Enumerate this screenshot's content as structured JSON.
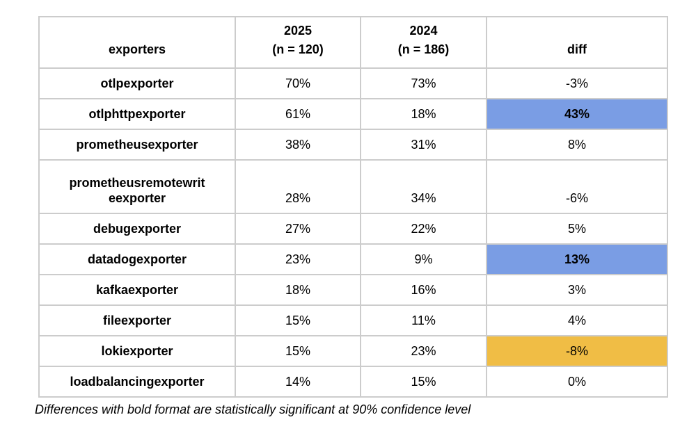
{
  "table": {
    "columns": [
      {
        "label": "exporters"
      },
      {
        "line1": "2025",
        "line2": "(n = 120)"
      },
      {
        "line1": "2024",
        "line2": "(n = 186)"
      },
      {
        "label": "diff"
      }
    ],
    "rows": [
      {
        "name": "otlpexporter",
        "y2025": "70%",
        "y2024": "73%",
        "diff": "-3%",
        "diff_highlight": null,
        "diff_bold": false
      },
      {
        "name": "otlphttpexporter",
        "y2025": "61%",
        "y2024": "18%",
        "diff": "43%",
        "diff_highlight": "blue",
        "diff_bold": true
      },
      {
        "name": "prometheusexporter",
        "y2025": "38%",
        "y2024": "31%",
        "diff": "8%",
        "diff_highlight": null,
        "diff_bold": false
      },
      {
        "name": "prometheusremotewriteexporter",
        "y2025": "28%",
        "y2024": "34%",
        "diff": "-6%",
        "diff_highlight": null,
        "diff_bold": false
      },
      {
        "name": "debugexporter",
        "y2025": "27%",
        "y2024": "22%",
        "diff": "5%",
        "diff_highlight": null,
        "diff_bold": false
      },
      {
        "name": "datadogexporter",
        "y2025": "23%",
        "y2024": "9%",
        "diff": "13%",
        "diff_highlight": "blue",
        "diff_bold": true
      },
      {
        "name": "kafkaexporter",
        "y2025": "18%",
        "y2024": "16%",
        "diff": "3%",
        "diff_highlight": null,
        "diff_bold": false
      },
      {
        "name": "fileexporter",
        "y2025": "15%",
        "y2024": "11%",
        "diff": "4%",
        "diff_highlight": null,
        "diff_bold": false
      },
      {
        "name": "lokiexporter",
        "y2025": "15%",
        "y2024": "23%",
        "diff": "-8%",
        "diff_highlight": "orange",
        "diff_bold": false
      },
      {
        "name": "loadbalancingexporter",
        "y2025": "14%",
        "y2024": "15%",
        "diff": "0%",
        "diff_highlight": null,
        "diff_bold": false
      }
    ]
  },
  "footnote": "Differences with bold format are statistically significant at 90% confidence level",
  "colors": {
    "highlight_blue": "#7a9de4",
    "highlight_orange": "#f0bd45",
    "border": "#cccccc"
  }
}
